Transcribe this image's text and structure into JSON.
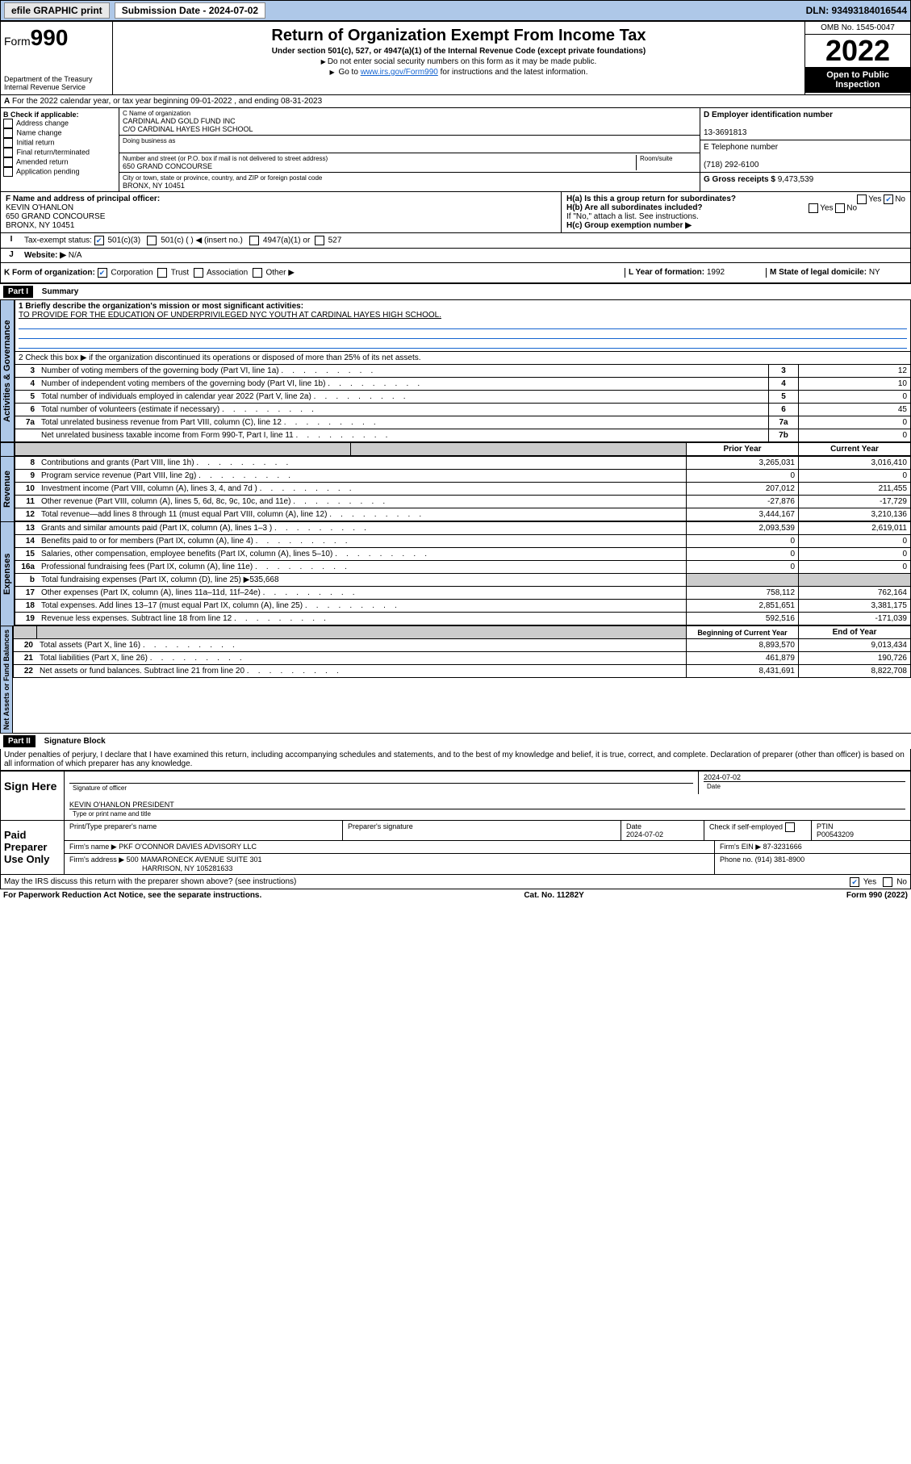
{
  "colors": {
    "header_bg": "#aec8e8",
    "black": "#000000",
    "link": "#1464d0",
    "grey_cell": "#cccccc"
  },
  "top": {
    "efile": "efile GRAPHIC print",
    "submission_label": "Submission Date - 2024-07-02",
    "dln": "DLN: 93493184016544"
  },
  "header": {
    "form_label": "Form",
    "form_no": "990",
    "dept": "Department of the Treasury",
    "irs": "Internal Revenue Service",
    "title": "Return of Organization Exempt From Income Tax",
    "subtitle": "Under section 501(c), 527, or 4947(a)(1) of the Internal Revenue Code (except private foundations)",
    "note1": "Do not enter social security numbers on this form as it may be made public.",
    "note2_pre": "Go to ",
    "note2_link": "www.irs.gov/Form990",
    "note2_post": " for instructions and the latest information.",
    "omb": "OMB No. 1545-0047",
    "year": "2022",
    "inspect": "Open to Public Inspection"
  },
  "lineA": "For the 2022 calendar year, or tax year beginning 09-01-2022    , and ending 08-31-2023",
  "boxB": {
    "label": "B Check if applicable:",
    "items": [
      "Address change",
      "Name change",
      "Initial return",
      "Final return/terminated",
      "Amended return",
      "Application pending"
    ]
  },
  "boxC": {
    "name_label": "C Name of organization",
    "name": "CARDINAL AND GOLD FUND INC",
    "co": "C/O CARDINAL HAYES HIGH SCHOOL",
    "dba_label": "Doing business as",
    "addr_label": "Number and street (or P.O. box if mail is not delivered to street address)",
    "room_label": "Room/suite",
    "addr": "650 GRAND CONCOURSE",
    "city_label": "City or town, state or province, country, and ZIP or foreign postal code",
    "city": "BRONX, NY  10451"
  },
  "boxD": {
    "label": "D Employer identification number",
    "val": "13-3691813"
  },
  "boxE": {
    "label": "E Telephone number",
    "val": "(718) 292-6100"
  },
  "boxG": {
    "label": "G Gross receipts $",
    "val": "9,473,539"
  },
  "boxF": {
    "label": "F  Name and address of principal officer:",
    "name": "KEVIN O'HANLON",
    "addr": "650 GRAND CONCOURSE",
    "city": "BRONX, NY  10451"
  },
  "boxH": {
    "a": "H(a)  Is this a group return for subordinates?",
    "b": "H(b)  Are all subordinates included?",
    "b_note": "If \"No,\" attach a list. See instructions.",
    "c": "H(c)  Group exemption number ▶",
    "yes": "Yes",
    "no": "No"
  },
  "boxI": {
    "label": "Tax-exempt status:",
    "opt1": "501(c)(3)",
    "opt2": "501(c) (   ) ◀ (insert no.)",
    "opt3": "4947(a)(1) or",
    "opt4": "527"
  },
  "boxJ": {
    "label": "Website: ▶",
    "val": "N/A"
  },
  "boxK": {
    "label": "K Form of organization:",
    "opts": [
      "Corporation",
      "Trust",
      "Association",
      "Other ▶"
    ]
  },
  "boxL": {
    "label": "L Year of formation:",
    "val": "1992"
  },
  "boxM": {
    "label": "M State of legal domicile:",
    "val": "NY"
  },
  "part1": {
    "hdr": "Part I",
    "title": "Summary",
    "line1_label": "1  Briefly describe the organization's mission or most significant activities:",
    "line1_text": "TO PROVIDE FOR THE EDUCATION OF UNDERPRIVILEGED NYC YOUTH AT CARDINAL HAYES HIGH SCHOOL.",
    "line2": "2   Check this box ▶        if the organization discontinued its operations or disposed of more than 25% of its net assets.",
    "rows_single": [
      {
        "n": "3",
        "desc": "Number of voting members of the governing body (Part VI, line 1a)",
        "box": "3",
        "v": "12"
      },
      {
        "n": "4",
        "desc": "Number of independent voting members of the governing body (Part VI, line 1b)",
        "box": "4",
        "v": "10"
      },
      {
        "n": "5",
        "desc": "Total number of individuals employed in calendar year 2022 (Part V, line 2a)",
        "box": "5",
        "v": "0"
      },
      {
        "n": "6",
        "desc": "Total number of volunteers (estimate if necessary)",
        "box": "6",
        "v": "45"
      },
      {
        "n": "7a",
        "desc": "Total unrelated business revenue from Part VIII, column (C), line 12",
        "box": "7a",
        "v": "0"
      },
      {
        "n": "",
        "desc": "Net unrelated business taxable income from Form 990-T, Part I, line 11",
        "box": "7b",
        "v": "0"
      }
    ],
    "col_hdr_prior": "Prior Year",
    "col_hdr_curr": "Current Year",
    "revenue": [
      {
        "n": "8",
        "desc": "Contributions and grants (Part VIII, line 1h)",
        "p": "3,265,031",
        "c": "3,016,410"
      },
      {
        "n": "9",
        "desc": "Program service revenue (Part VIII, line 2g)",
        "p": "0",
        "c": "0"
      },
      {
        "n": "10",
        "desc": "Investment income (Part VIII, column (A), lines 3, 4, and 7d )",
        "p": "207,012",
        "c": "211,455"
      },
      {
        "n": "11",
        "desc": "Other revenue (Part VIII, column (A), lines 5, 6d, 8c, 9c, 10c, and 11e)",
        "p": "-27,876",
        "c": "-17,729"
      },
      {
        "n": "12",
        "desc": "Total revenue—add lines 8 through 11 (must equal Part VIII, column (A), line 12)",
        "p": "3,444,167",
        "c": "3,210,136"
      }
    ],
    "expenses": [
      {
        "n": "13",
        "desc": "Grants and similar amounts paid (Part IX, column (A), lines 1–3 )",
        "p": "2,093,539",
        "c": "2,619,011"
      },
      {
        "n": "14",
        "desc": "Benefits paid to or for members (Part IX, column (A), line 4)",
        "p": "0",
        "c": "0"
      },
      {
        "n": "15",
        "desc": "Salaries, other compensation, employee benefits (Part IX, column (A), lines 5–10)",
        "p": "0",
        "c": "0"
      },
      {
        "n": "16a",
        "desc": "Professional fundraising fees (Part IX, column (A), line 11e)",
        "p": "0",
        "c": "0"
      }
    ],
    "exp_b": {
      "n": "b",
      "desc": "Total fundraising expenses (Part IX, column (D), line 25) ▶535,668"
    },
    "expenses2": [
      {
        "n": "17",
        "desc": "Other expenses (Part IX, column (A), lines 11a–11d, 11f–24e)",
        "p": "758,112",
        "c": "762,164"
      },
      {
        "n": "18",
        "desc": "Total expenses. Add lines 13–17 (must equal Part IX, column (A), line 25)",
        "p": "2,851,651",
        "c": "3,381,175"
      },
      {
        "n": "19",
        "desc": "Revenue less expenses. Subtract line 18 from line 12",
        "p": "592,516",
        "c": "-171,039"
      }
    ],
    "col_hdr_beg": "Beginning of Current Year",
    "col_hdr_end": "End of Year",
    "netassets": [
      {
        "n": "20",
        "desc": "Total assets (Part X, line 16)",
        "p": "8,893,570",
        "c": "9,013,434"
      },
      {
        "n": "21",
        "desc": "Total liabilities (Part X, line 26)",
        "p": "461,879",
        "c": "190,726"
      },
      {
        "n": "22",
        "desc": "Net assets or fund balances. Subtract line 21 from line 20",
        "p": "8,431,691",
        "c": "8,822,708"
      }
    ],
    "vlabels": {
      "gov": "Activities & Governance",
      "rev": "Revenue",
      "exp": "Expenses",
      "net": "Net Assets or Fund Balances"
    }
  },
  "part2": {
    "hdr": "Part II",
    "title": "Signature Block",
    "decl": "Under penalties of perjury, I declare that I have examined this return, including accompanying schedules and statements, and to the best of my knowledge and belief, it is true, correct, and complete. Declaration of preparer (other than officer) is based on all information of which preparer has any knowledge.",
    "sign_here": "Sign Here",
    "sig_officer": "Signature of officer",
    "sig_date": "2024-07-02",
    "date_lbl": "Date",
    "officer_name": "KEVIN O'HANLON  PRESIDENT",
    "officer_lbl": "Type or print name and title",
    "paid": "Paid Preparer Use Only",
    "prep_name_lbl": "Print/Type preparer's name",
    "prep_sig_lbl": "Preparer's signature",
    "prep_date": "2024-07-02",
    "check_self": "Check         if self-employed",
    "ptin_lbl": "PTIN",
    "ptin": "P00543209",
    "firm_name_lbl": "Firm's name    ▶",
    "firm_name": "PKF O'CONNOR DAVIES ADVISORY LLC",
    "firm_ein_lbl": "Firm's EIN ▶",
    "firm_ein": "87-3231666",
    "firm_addr_lbl": "Firm's address ▶",
    "firm_addr1": "500 MAMARONECK AVENUE SUITE 301",
    "firm_addr2": "HARRISON, NY 105281633",
    "phone_lbl": "Phone no.",
    "phone": "(914) 381-8900",
    "discuss": "May the IRS discuss this return with the preparer shown above? (see instructions)",
    "yes": "Yes",
    "no": "No"
  },
  "footer": {
    "left": "For Paperwork Reduction Act Notice, see the separate instructions.",
    "mid": "Cat. No. 11282Y",
    "right": "Form 990 (2022)"
  }
}
